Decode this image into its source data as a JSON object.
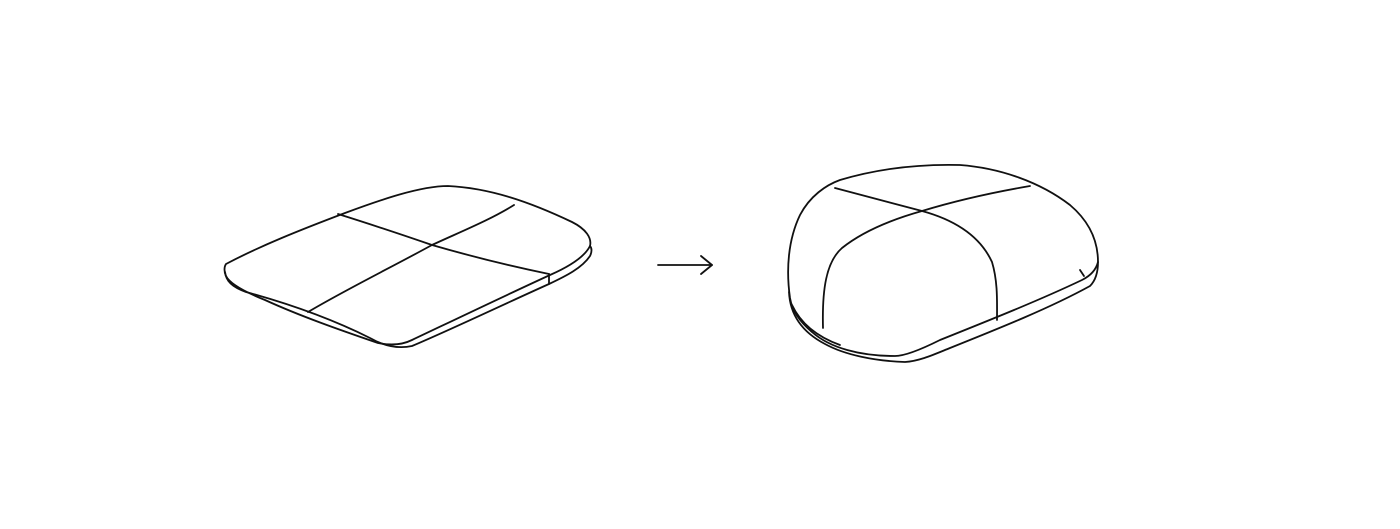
{
  "diagram": {
    "background_color": "#ffffff",
    "stroke_color": "#111111",
    "steps": [
      {
        "name": "flat-cushion",
        "description_visible": false
      },
      {
        "name": "inflated-cushion",
        "description_visible": false
      }
    ],
    "connector": {
      "icon": "right-arrow-icon"
    }
  }
}
